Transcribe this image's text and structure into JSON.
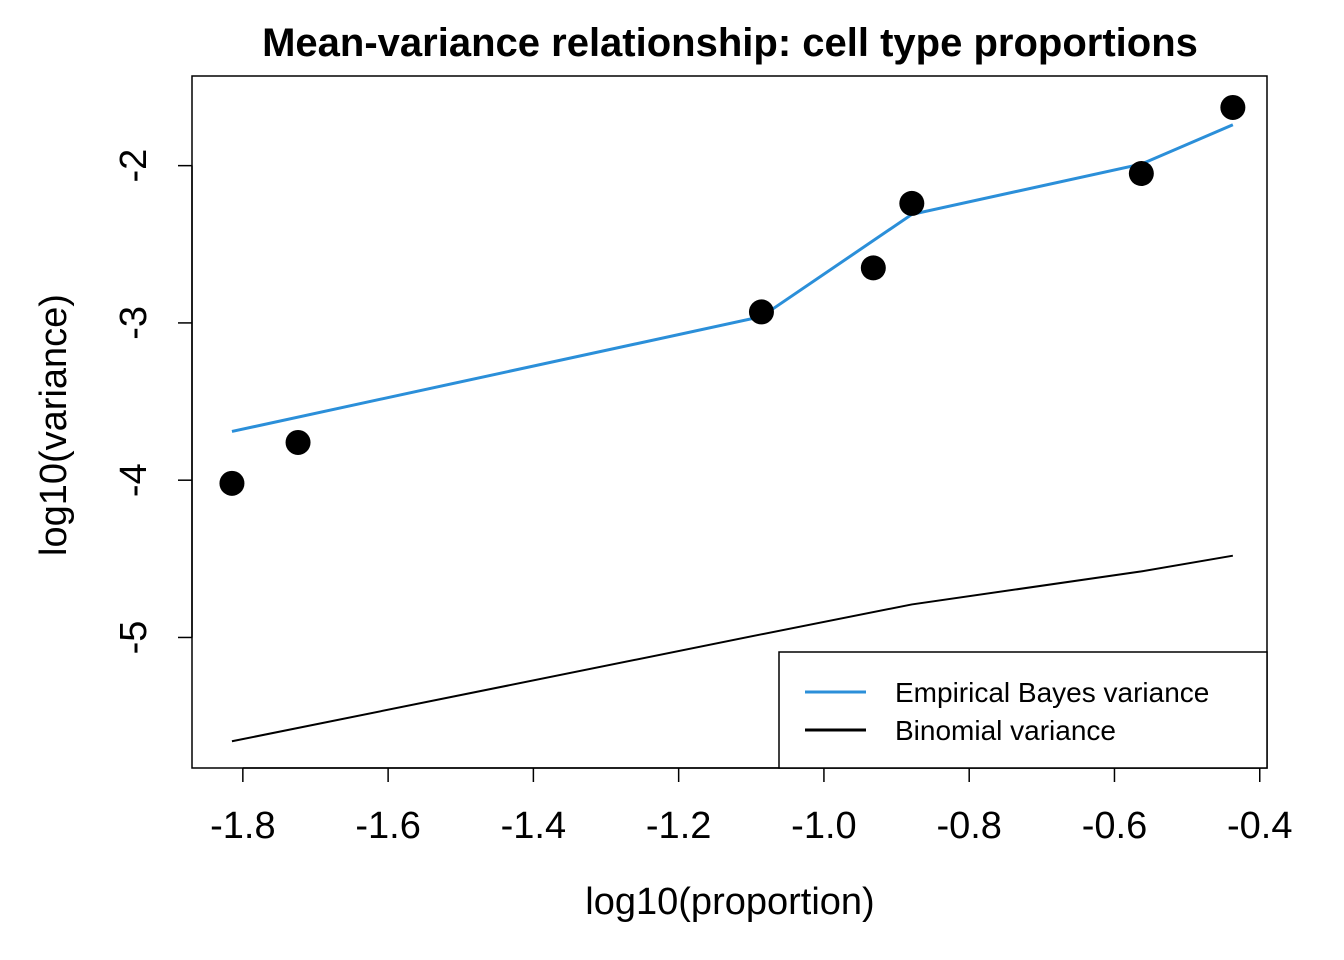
{
  "chart_data": {
    "type": "scatter",
    "title": "Mean-variance relationship: cell type proportions",
    "xlabel": "log10(proportion)",
    "ylabel": "log10(variance)",
    "xlim": [
      -1.87,
      -0.39
    ],
    "ylim": [
      -5.83,
      -1.43
    ],
    "x_ticks": [
      -1.8,
      -1.6,
      -1.4,
      -1.2,
      -1.0,
      -0.8,
      -0.6,
      -0.4
    ],
    "x_tick_labels": [
      "-1.8",
      "-1.6",
      "-1.4",
      "-1.2",
      "-1.0",
      "-0.8",
      "-0.6",
      "-0.4"
    ],
    "y_ticks": [
      -5,
      -4,
      -3,
      -2
    ],
    "y_tick_labels": [
      "-5",
      "-4",
      "-3",
      "-2"
    ],
    "points": {
      "x": [
        -1.815,
        -1.724,
        -1.086,
        -0.932,
        -0.879,
        -0.563,
        -0.437
      ],
      "y": [
        -4.02,
        -3.76,
        -2.93,
        -2.65,
        -2.24,
        -2.05,
        -1.63
      ]
    },
    "series": [
      {
        "name": "Empirical Bayes variance",
        "color": "#2b8fd9",
        "x": [
          -1.815,
          -1.086,
          -0.879,
          -0.563,
          -0.437
        ],
        "y": [
          -3.69,
          -2.96,
          -2.31,
          -1.99,
          -1.74
        ]
      },
      {
        "name": "Binomial variance",
        "color": "#000000",
        "x": [
          -1.815,
          -1.086,
          -0.879,
          -0.563,
          -0.437
        ],
        "y": [
          -5.66,
          -4.98,
          -4.79,
          -4.58,
          -4.48
        ]
      }
    ],
    "point_color": "#000000",
    "grid": false,
    "legend_position": "bottom-right"
  }
}
